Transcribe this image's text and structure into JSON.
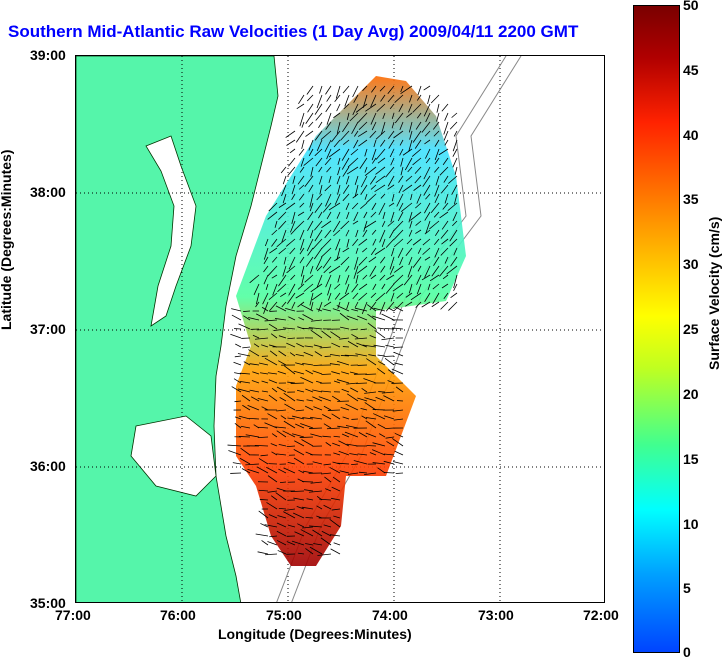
{
  "title": "Southern Mid-Atlantic Raw Velocities (1 Day Avg) 2009/04/11 2200 GMT",
  "xlabel": "Longitude (Degrees:Minutes)",
  "ylabel": "Latitude (Degrees:Minutes)",
  "x_ticks": [
    "77:00",
    "76:00",
    "75:00",
    "74:00",
    "73:00",
    "72:00"
  ],
  "y_ticks": [
    "39:00",
    "38:00",
    "37:00",
    "36:00",
    "35:00"
  ],
  "colorbar": {
    "label": "Surface Velocity (cm/s)",
    "ticks": [
      "0",
      "5",
      "10",
      "15",
      "20",
      "25",
      "30",
      "35",
      "40",
      "45",
      "50"
    ]
  },
  "colors": {
    "land": "#55f5aa",
    "title": "#0000ff"
  }
}
